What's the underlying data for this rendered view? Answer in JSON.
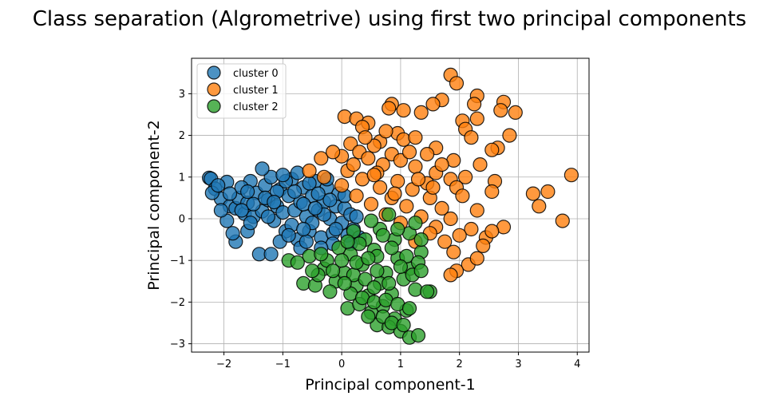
{
  "chart_data": {
    "type": "scatter",
    "title": "Class separation (Algrometrive) using first two principal components",
    "xlabel": "Principal component-1",
    "ylabel": "Principal component-2",
    "xlim": [
      -2.55,
      4.2
    ],
    "ylim": [
      -3.2,
      3.85
    ],
    "xticks": [
      -2,
      -1,
      0,
      1,
      2,
      3,
      4
    ],
    "yticks": [
      -3,
      -2,
      -1,
      0,
      1,
      2,
      3
    ],
    "xtick_labels": [
      "−2",
      "−1",
      "0",
      "1",
      "2",
      "3",
      "4"
    ],
    "ytick_labels": [
      "−3",
      "−2",
      "−1",
      "0",
      "1",
      "2",
      "3"
    ],
    "grid": true,
    "legend_position": "top-left",
    "series": [
      {
        "name": "cluster 0",
        "color": "#1f77b4",
        "points": [
          [
            -2.25,
            0.98
          ],
          [
            -2.22,
            0.96
          ],
          [
            -2.15,
            0.72
          ],
          [
            -2.05,
            0.48
          ],
          [
            -2.2,
            0.62
          ],
          [
            -1.95,
            0.88
          ],
          [
            -1.9,
            0.3
          ],
          [
            -1.8,
            0.25
          ],
          [
            -1.75,
            0.5
          ],
          [
            -1.65,
            0.12
          ],
          [
            -1.6,
            0.38
          ],
          [
            -1.55,
            0.9
          ],
          [
            -1.5,
            0.05
          ],
          [
            -1.45,
            0.62
          ],
          [
            -1.35,
            0.18
          ],
          [
            -1.3,
            0.8
          ],
          [
            -1.25,
            0.45
          ],
          [
            -1.2,
            1.0
          ],
          [
            -1.15,
            -0.05
          ],
          [
            -1.1,
            0.3
          ],
          [
            -1.05,
            0.7
          ],
          [
            -1.0,
            0.15
          ],
          [
            -0.95,
            -0.3
          ],
          [
            -0.9,
            0.55
          ],
          [
            -0.85,
            0.95
          ],
          [
            -0.8,
            0.2
          ],
          [
            -0.75,
            -0.5
          ],
          [
            -0.7,
            0.4
          ],
          [
            -0.65,
            0.75
          ],
          [
            -0.6,
            0.05
          ],
          [
            -0.55,
            -0.3
          ],
          [
            -0.5,
            0.55
          ],
          [
            -0.45,
            0.9
          ],
          [
            -0.4,
            0.2
          ],
          [
            -0.35,
            -0.45
          ],
          [
            -0.3,
            0.4
          ],
          [
            -0.25,
            0.75
          ],
          [
            -0.2,
            0.0
          ],
          [
            -0.15,
            -0.35
          ],
          [
            -0.1,
            0.3
          ],
          [
            -0.05,
            0.6
          ],
          [
            0.0,
            -0.1
          ],
          [
            0.05,
            0.25
          ],
          [
            0.1,
            -0.4
          ],
          [
            0.15,
            0.1
          ],
          [
            0.2,
            -0.25
          ],
          [
            0.25,
            0.05
          ],
          [
            0.3,
            -0.45
          ],
          [
            -1.4,
            -0.85
          ],
          [
            -1.2,
            -0.85
          ],
          [
            -1.6,
            -0.3
          ],
          [
            -1.05,
            -0.55
          ],
          [
            -0.85,
            -0.15
          ],
          [
            -0.7,
            -0.7
          ],
          [
            -1.8,
            -0.55
          ],
          [
            -1.85,
            -0.35
          ],
          [
            -1.95,
            -0.05
          ],
          [
            -2.05,
            0.2
          ],
          [
            -1.7,
            0.75
          ],
          [
            -1.5,
            0.35
          ],
          [
            -1.35,
            1.2
          ],
          [
            -1.1,
            0.65
          ],
          [
            -0.95,
            0.9
          ],
          [
            -0.65,
            0.35
          ],
          [
            -0.5,
            -0.1
          ],
          [
            -0.3,
            0.1
          ],
          [
            -0.2,
            0.45
          ],
          [
            -0.55,
            0.85
          ],
          [
            -0.4,
            0.6
          ],
          [
            -0.15,
            -0.6
          ],
          [
            -2.1,
            0.8
          ],
          [
            -1.9,
            0.6
          ],
          [
            -1.7,
            0.2
          ],
          [
            -1.55,
            -0.1
          ],
          [
            -1.25,
            0.05
          ],
          [
            -0.9,
            -0.4
          ],
          [
            -0.6,
            -0.55
          ],
          [
            -0.35,
            -0.7
          ],
          [
            -0.1,
            -0.25
          ],
          [
            0.15,
            -0.6
          ],
          [
            -1.0,
            1.05
          ],
          [
            -0.75,
            1.1
          ],
          [
            -1.6,
            0.65
          ],
          [
            -1.3,
            0.5
          ],
          [
            -0.8,
            0.65
          ],
          [
            -0.25,
            0.95
          ],
          [
            0.05,
            0.55
          ],
          [
            -0.45,
            0.25
          ],
          [
            -1.15,
            0.4
          ],
          [
            -0.65,
            -0.25
          ]
        ]
      },
      {
        "name": "cluster 1",
        "color": "#ff7f0e",
        "points": [
          [
            1.85,
            3.45
          ],
          [
            1.95,
            3.25
          ],
          [
            2.3,
            2.95
          ],
          [
            2.75,
            2.8
          ],
          [
            1.7,
            2.85
          ],
          [
            2.25,
            2.75
          ],
          [
            2.7,
            2.6
          ],
          [
            1.55,
            2.75
          ],
          [
            0.85,
            2.75
          ],
          [
            1.05,
            2.6
          ],
          [
            1.35,
            2.55
          ],
          [
            2.95,
            2.55
          ],
          [
            0.8,
            2.65
          ],
          [
            0.05,
            2.45
          ],
          [
            0.25,
            2.4
          ],
          [
            2.05,
            2.35
          ],
          [
            2.3,
            2.4
          ],
          [
            0.45,
            2.3
          ],
          [
            0.35,
            2.2
          ],
          [
            2.1,
            2.15
          ],
          [
            0.95,
            2.05
          ],
          [
            2.85,
            2.0
          ],
          [
            1.05,
            1.9
          ],
          [
            1.25,
            1.95
          ],
          [
            0.65,
            1.85
          ],
          [
            2.2,
            1.95
          ],
          [
            0.15,
            1.8
          ],
          [
            0.55,
            1.75
          ],
          [
            1.6,
            1.7
          ],
          [
            2.65,
            1.7
          ],
          [
            0.3,
            1.6
          ],
          [
            0.85,
            1.55
          ],
          [
            1.45,
            1.55
          ],
          [
            2.55,
            1.65
          ],
          [
            0.0,
            1.5
          ],
          [
            0.45,
            1.45
          ],
          [
            1.0,
            1.4
          ],
          [
            1.9,
            1.4
          ],
          [
            -0.35,
            1.45
          ],
          [
            0.7,
            1.3
          ],
          [
            1.25,
            1.25
          ],
          [
            2.35,
            1.3
          ],
          [
            -0.55,
            1.15
          ],
          [
            0.1,
            1.15
          ],
          [
            0.6,
            1.1
          ],
          [
            1.6,
            1.1
          ],
          [
            2.1,
            1.0
          ],
          [
            -0.3,
            1.0
          ],
          [
            0.35,
            0.95
          ],
          [
            0.95,
            0.9
          ],
          [
            1.45,
            0.85
          ],
          [
            1.85,
            0.95
          ],
          [
            2.6,
            0.9
          ],
          [
            0.0,
            0.8
          ],
          [
            0.65,
            0.75
          ],
          [
            1.2,
            0.7
          ],
          [
            1.95,
            0.75
          ],
          [
            0.25,
            0.55
          ],
          [
            0.85,
            0.5
          ],
          [
            1.5,
            0.5
          ],
          [
            2.05,
            0.55
          ],
          [
            0.5,
            0.35
          ],
          [
            1.1,
            0.3
          ],
          [
            1.7,
            0.25
          ],
          [
            2.3,
            0.2
          ],
          [
            0.75,
            0.1
          ],
          [
            1.35,
            0.05
          ],
          [
            1.85,
            0.0
          ],
          [
            1.0,
            -0.1
          ],
          [
            1.6,
            -0.2
          ],
          [
            2.2,
            -0.25
          ],
          [
            1.75,
            -0.55
          ],
          [
            2.0,
            -0.4
          ],
          [
            2.45,
            -0.45
          ],
          [
            2.75,
            -0.2
          ],
          [
            1.9,
            -0.8
          ],
          [
            2.15,
            -1.1
          ],
          [
            1.95,
            -1.25
          ],
          [
            2.3,
            -0.95
          ],
          [
            1.85,
            -1.35
          ],
          [
            3.25,
            0.6
          ],
          [
            3.5,
            0.65
          ],
          [
            3.35,
            0.3
          ],
          [
            3.75,
            -0.05
          ],
          [
            3.9,
            1.05
          ],
          [
            2.55,
            0.65
          ],
          [
            2.4,
            -0.65
          ],
          [
            2.55,
            -0.3
          ],
          [
            1.5,
            -0.35
          ],
          [
            1.25,
            -0.55
          ],
          [
            0.2,
            1.3
          ],
          [
            0.4,
            1.95
          ],
          [
            0.75,
            2.1
          ],
          [
            1.15,
            1.6
          ],
          [
            1.7,
            1.3
          ],
          [
            -0.15,
            1.6
          ],
          [
            0.55,
            1.05
          ],
          [
            1.3,
            0.95
          ],
          [
            0.9,
            0.6
          ],
          [
            1.55,
            0.75
          ]
        ]
      },
      {
        "name": "cluster 2",
        "color": "#2ca02c",
        "points": [
          [
            -0.65,
            -1.55
          ],
          [
            -0.9,
            -1.0
          ],
          [
            -0.55,
            -0.9
          ],
          [
            -0.3,
            -1.2
          ],
          [
            -0.1,
            -1.5
          ],
          [
            0.15,
            -0.85
          ],
          [
            0.35,
            -1.1
          ],
          [
            0.55,
            -0.75
          ],
          [
            0.75,
            -1.3
          ],
          [
            0.95,
            -0.95
          ],
          [
            1.15,
            -1.2
          ],
          [
            1.35,
            -0.8
          ],
          [
            -0.45,
            -1.6
          ],
          [
            -0.2,
            -1.75
          ],
          [
            0.05,
            -1.3
          ],
          [
            0.25,
            -1.6
          ],
          [
            0.45,
            -1.85
          ],
          [
            0.65,
            -1.55
          ],
          [
            0.85,
            -1.8
          ],
          [
            1.05,
            -1.45
          ],
          [
            1.25,
            -1.7
          ],
          [
            1.5,
            -1.75
          ],
          [
            0.1,
            -2.15
          ],
          [
            0.3,
            -2.05
          ],
          [
            0.5,
            -2.25
          ],
          [
            0.7,
            -2.1
          ],
          [
            0.9,
            -2.4
          ],
          [
            1.1,
            -2.2
          ],
          [
            0.6,
            -2.55
          ],
          [
            0.8,
            -2.6
          ],
          [
            1.0,
            -2.7
          ],
          [
            1.15,
            -2.85
          ],
          [
            1.3,
            -2.8
          ],
          [
            0.4,
            -0.5
          ],
          [
            0.65,
            -0.25
          ],
          [
            0.9,
            -0.5
          ],
          [
            1.15,
            -0.35
          ],
          [
            1.35,
            -0.5
          ],
          [
            0.2,
            -0.3
          ],
          [
            0.5,
            -0.05
          ],
          [
            0.8,
            0.1
          ],
          [
            -0.05,
            -0.7
          ],
          [
            0.3,
            -0.6
          ],
          [
            0.6,
            -0.9
          ],
          [
            0.85,
            -0.7
          ],
          [
            1.1,
            -0.9
          ],
          [
            1.3,
            -1.05
          ],
          [
            -0.25,
            -1.0
          ],
          [
            -0.4,
            -1.35
          ],
          [
            0.0,
            -1.0
          ],
          [
            0.2,
            -1.35
          ],
          [
            0.4,
            -1.45
          ],
          [
            0.6,
            -1.25
          ],
          [
            0.8,
            -1.55
          ],
          [
            1.0,
            -1.15
          ],
          [
            1.2,
            -1.35
          ],
          [
            1.45,
            -1.75
          ],
          [
            0.15,
            -1.8
          ],
          [
            0.35,
            -1.9
          ],
          [
            0.55,
            -2.0
          ],
          [
            0.75,
            -1.95
          ],
          [
            0.95,
            -2.05
          ],
          [
            1.15,
            -2.15
          ],
          [
            0.45,
            -2.35
          ],
          [
            0.7,
            -2.35
          ],
          [
            0.85,
            -2.5
          ],
          [
            1.05,
            -2.55
          ],
          [
            -0.75,
            -1.05
          ],
          [
            -0.5,
            -1.25
          ],
          [
            -0.15,
            -1.25
          ],
          [
            0.1,
            -0.55
          ],
          [
            0.7,
            -0.4
          ],
          [
            0.95,
            -0.25
          ],
          [
            1.25,
            -0.1
          ],
          [
            0.55,
            -1.65
          ],
          [
            0.25,
            -1.05
          ],
          [
            -0.35,
            -0.85
          ],
          [
            0.05,
            -1.55
          ],
          [
            1.35,
            -1.25
          ],
          [
            0.45,
            -0.95
          ]
        ]
      }
    ]
  }
}
